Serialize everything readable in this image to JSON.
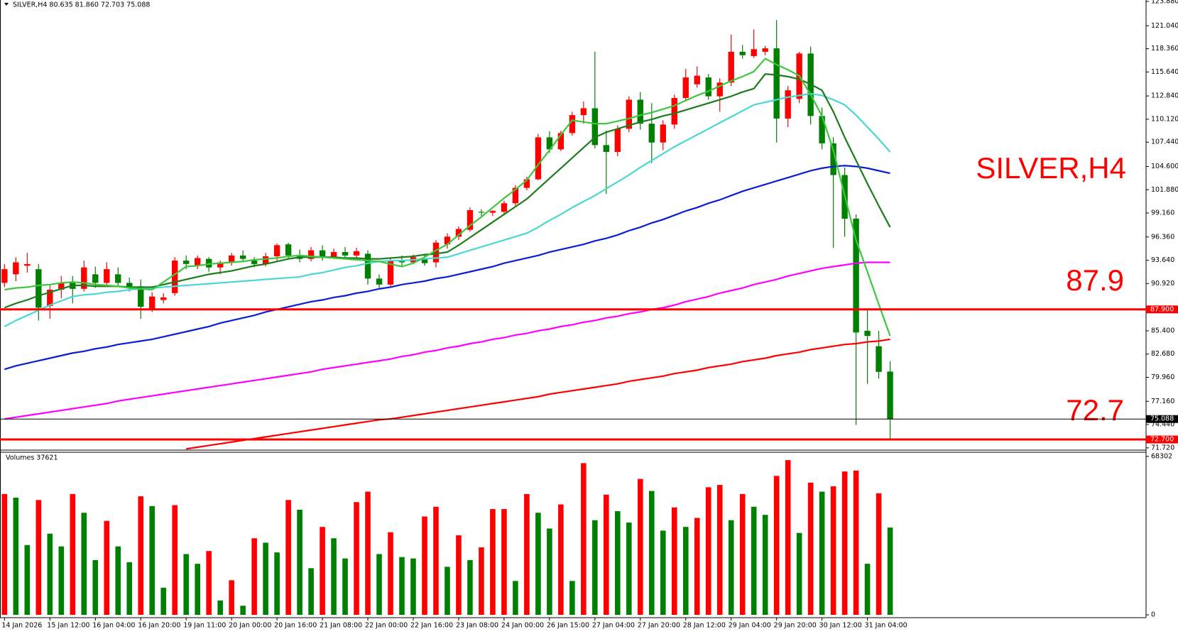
{
  "chart_data": {
    "type": "candlestick",
    "title": "SILVER,H4",
    "header": "SILVER,H4  80.635 81.860 72.703 75.088",
    "annotations": [
      "87.9",
      "72.7"
    ],
    "categories": [
      "14 Jan 2026",
      null,
      null,
      null,
      "15 Jan 12:00",
      null,
      null,
      null,
      "16 Jan 04:00",
      null,
      null,
      null,
      "16 Jan 20:00",
      null,
      null,
      null,
      "19 Jan 11:00",
      null,
      null,
      null,
      "20 Jan 00:00",
      null,
      null,
      null,
      "20 Jan 16:00",
      null,
      null,
      null,
      "21 Jan 08:00",
      null,
      null,
      null,
      "22 Jan 00:00",
      null,
      null,
      null,
      "22 Jan 16:00",
      null,
      null,
      null,
      "23 Jan 08:00",
      null,
      null,
      null,
      "24 Jan 00:00",
      null,
      null,
      null,
      "26 Jan 15:00",
      null,
      null,
      null,
      "27 Jan 04:00",
      null,
      null,
      null,
      "27 Jan 20:00",
      null,
      null,
      null,
      "28 Jan 12:00",
      null,
      null,
      null,
      "29 Jan 04:00",
      null,
      null,
      null,
      "29 Jan 20:00",
      null,
      null,
      null,
      "30 Jan 12:00",
      null,
      null,
      null,
      "31 Jan 04:00",
      null,
      null
    ],
    "ohlc": [
      [
        91.0,
        93.2,
        90.5,
        92.6
      ],
      [
        92.0,
        94.0,
        91.2,
        93.4
      ],
      [
        93.0,
        94.5,
        92.2,
        93.2
      ],
      [
        92.6,
        93.2,
        86.6,
        88.1
      ],
      [
        88.3,
        90.8,
        86.8,
        90.2
      ],
      [
        90.2,
        91.8,
        89.2,
        91.0
      ],
      [
        91.0,
        91.8,
        88.6,
        90.3
      ],
      [
        90.3,
        93.6,
        90.0,
        92.8
      ],
      [
        92.0,
        92.9,
        90.4,
        91.0
      ],
      [
        91.0,
        93.4,
        90.6,
        92.6
      ],
      [
        92.0,
        92.8,
        90.5,
        91.0
      ],
      [
        91.0,
        91.6,
        90.0,
        90.4
      ],
      [
        90.6,
        91.4,
        86.8,
        88.2
      ],
      [
        88.0,
        89.9,
        87.6,
        89.4
      ],
      [
        89.0,
        89.8,
        88.6,
        89.3
      ],
      [
        89.8,
        94.0,
        89.5,
        93.6
      ],
      [
        93.6,
        94.2,
        92.6,
        93.2
      ],
      [
        93.0,
        94.2,
        92.6,
        93.9
      ],
      [
        93.8,
        94.0,
        92.3,
        92.8
      ],
      [
        92.8,
        93.6,
        92.0,
        93.4
      ],
      [
        93.4,
        94.5,
        93.0,
        94.2
      ],
      [
        94.2,
        94.8,
        93.4,
        93.8
      ],
      [
        93.6,
        94.0,
        92.8,
        93.2
      ],
      [
        93.2,
        94.5,
        92.9,
        94.1
      ],
      [
        94.1,
        95.6,
        93.6,
        95.4
      ],
      [
        95.5,
        95.7,
        93.8,
        94.2
      ],
      [
        94.2,
        94.9,
        93.4,
        93.8
      ],
      [
        93.8,
        95.2,
        93.5,
        94.8
      ],
      [
        94.8,
        95.4,
        93.6,
        94.0
      ],
      [
        94.0,
        95.0,
        93.8,
        94.6
      ],
      [
        94.6,
        95.2,
        93.9,
        94.2
      ],
      [
        94.2,
        95.1,
        93.7,
        94.7
      ],
      [
        94.4,
        94.8,
        90.8,
        91.5
      ],
      [
        91.5,
        92.0,
        90.4,
        90.8
      ],
      [
        90.8,
        94.0,
        90.5,
        93.6
      ],
      [
        93.6,
        94.2,
        93.0,
        93.4
      ],
      [
        93.4,
        94.3,
        93.2,
        94.0
      ],
      [
        93.8,
        94.4,
        93.0,
        93.3
      ],
      [
        93.4,
        96.0,
        92.8,
        95.7
      ],
      [
        95.5,
        96.8,
        95.0,
        96.4
      ],
      [
        96.4,
        97.6,
        96.0,
        97.3
      ],
      [
        97.2,
        99.8,
        97.0,
        99.5
      ],
      [
        99.3,
        99.6,
        98.8,
        99.2
      ],
      [
        99.2,
        99.5,
        98.8,
        99.4
      ],
      [
        99.3,
        100.6,
        99.0,
        100.3
      ],
      [
        100.3,
        102.4,
        100.0,
        102.1
      ],
      [
        102.1,
        103.4,
        101.8,
        103.1
      ],
      [
        103.1,
        108.4,
        103.0,
        108.0
      ],
      [
        108.0,
        108.7,
        106.2,
        106.6
      ],
      [
        106.6,
        108.8,
        106.4,
        108.5
      ],
      [
        108.5,
        111.0,
        108.2,
        110.6
      ],
      [
        110.6,
        112.2,
        109.6,
        111.4
      ],
      [
        111.4,
        118.0,
        106.7,
        107.1
      ],
      [
        107.1,
        108.8,
        101.4,
        106.3
      ],
      [
        106.3,
        109.4,
        105.8,
        109.0
      ],
      [
        109.0,
        112.8,
        108.6,
        112.4
      ],
      [
        112.4,
        113.3,
        108.9,
        109.6
      ],
      [
        109.6,
        112.0,
        105.0,
        107.4
      ],
      [
        107.4,
        110.0,
        106.5,
        109.5
      ],
      [
        109.5,
        113.0,
        109.0,
        112.6
      ],
      [
        112.6,
        116.0,
        112.2,
        115.0
      ],
      [
        114.2,
        116.3,
        113.8,
        115.2
      ],
      [
        115.0,
        115.4,
        112.4,
        112.8
      ],
      [
        112.8,
        114.9,
        111.0,
        114.4
      ],
      [
        114.4,
        120.0,
        114.0,
        118.0
      ],
      [
        118.0,
        118.8,
        117.2,
        117.6
      ],
      [
        117.5,
        120.6,
        117.3,
        118.3
      ],
      [
        118.0,
        118.7,
        117.6,
        118.4
      ],
      [
        118.4,
        121.7,
        107.4,
        110.2
      ],
      [
        110.2,
        114.0,
        109.2,
        113.5
      ],
      [
        112.5,
        118.0,
        112.0,
        117.8
      ],
      [
        117.8,
        118.6,
        109.5,
        110.5
      ],
      [
        110.5,
        111.5,
        106.6,
        107.3
      ],
      [
        107.3,
        108.0,
        95.1,
        103.6
      ],
      [
        103.6,
        104.5,
        96.4,
        98.5
      ],
      [
        98.5,
        99.0,
        74.4,
        85.2
      ],
      [
        85.4,
        87.8,
        79.2,
        84.8
      ],
      [
        83.6,
        85.4,
        79.8,
        80.6
      ],
      [
        80.635,
        81.86,
        72.703,
        75.088
      ]
    ],
    "up_color": "#ff0000",
    "down_color": "#008000",
    "ylim": [
      71.54,
      124.05
    ],
    "yticks": [
      {
        "value": 123.88,
        "label": "123.880"
      },
      {
        "value": 121.04,
        "label": "121.040"
      },
      {
        "value": 118.36,
        "label": "118.360"
      },
      {
        "value": 115.64,
        "label": "115.640"
      },
      {
        "value": 112.84,
        "label": "112.840"
      },
      {
        "value": 110.12,
        "label": "110.120"
      },
      {
        "value": 107.44,
        "label": "107.440"
      },
      {
        "value": 104.6,
        "label": "104.600"
      },
      {
        "value": 101.88,
        "label": "101.880"
      },
      {
        "value": 99.16,
        "label": "99.160"
      },
      {
        "value": 96.36,
        "label": "96.360"
      },
      {
        "value": 93.64,
        "label": "93.640"
      },
      {
        "value": 90.92,
        "label": "90.920"
      },
      {
        "value": 85.4,
        "label": "85.400"
      },
      {
        "value": 82.68,
        "label": "82.680"
      },
      {
        "value": 79.96,
        "label": "79.960"
      },
      {
        "value": 77.16,
        "label": "77.160"
      },
      {
        "value": 74.44,
        "label": "74.440"
      },
      {
        "value": 71.72,
        "label": "71.720"
      }
    ],
    "lines": [
      {
        "color": "#ff0000",
        "values": [
          null,
          null,
          null,
          null,
          null,
          null,
          null,
          null,
          null,
          null,
          null,
          null,
          null,
          null,
          null,
          null,
          71.6,
          71.8,
          72.0,
          72.2,
          72.4,
          72.6,
          72.8,
          73.0,
          73.2,
          73.4,
          73.6,
          73.8,
          74.0,
          74.2,
          74.4,
          74.6,
          74.8,
          75.0,
          75.1,
          75.3,
          75.5,
          75.7,
          75.9,
          76.1,
          76.3,
          76.5,
          76.7,
          76.9,
          77.1,
          77.3,
          77.5,
          77.7,
          78.0,
          78.2,
          78.4,
          78.6,
          78.8,
          79.0,
          79.2,
          79.5,
          79.7,
          79.9,
          80.1,
          80.4,
          80.6,
          80.8,
          81.1,
          81.3,
          81.5,
          81.8,
          82.0,
          82.2,
          82.5,
          82.7,
          82.9,
          83.2,
          83.4,
          83.6,
          83.8,
          83.9,
          84.1,
          84.2,
          84.4
        ]
      },
      {
        "color": "#ff00ff",
        "values": [
          75.1,
          75.3,
          75.5,
          75.7,
          75.9,
          76.1,
          76.3,
          76.5,
          76.7,
          76.9,
          77.2,
          77.4,
          77.6,
          77.8,
          78.0,
          78.2,
          78.4,
          78.6,
          78.8,
          79.0,
          79.2,
          79.4,
          79.6,
          79.8,
          80.0,
          80.2,
          80.4,
          80.6,
          80.9,
          81.1,
          81.3,
          81.5,
          81.7,
          81.9,
          82.1,
          82.4,
          82.6,
          82.9,
          83.1,
          83.4,
          83.6,
          83.9,
          84.1,
          84.4,
          84.6,
          84.9,
          85.1,
          85.4,
          85.6,
          85.9,
          86.1,
          86.4,
          86.6,
          86.9,
          87.1,
          87.4,
          87.6,
          87.9,
          88.1,
          88.4,
          88.8,
          89.1,
          89.4,
          89.8,
          90.1,
          90.4,
          90.8,
          91.1,
          91.4,
          91.8,
          92.1,
          92.4,
          92.7,
          92.9,
          93.1,
          93.3,
          93.4,
          93.4,
          93.4
        ]
      },
      {
        "color": "#0a1ed2",
        "values": [
          80.9,
          81.3,
          81.6,
          81.9,
          82.2,
          82.5,
          82.8,
          83.0,
          83.3,
          83.5,
          83.8,
          84.0,
          84.2,
          84.4,
          84.7,
          85.0,
          85.3,
          85.6,
          85.9,
          86.3,
          86.6,
          86.9,
          87.2,
          87.6,
          87.9,
          88.2,
          88.5,
          88.8,
          89.0,
          89.3,
          89.5,
          89.8,
          90.0,
          90.3,
          90.5,
          90.8,
          91.0,
          91.2,
          91.5,
          91.7,
          92.0,
          92.3,
          92.6,
          92.9,
          93.3,
          93.6,
          93.9,
          94.2,
          94.6,
          94.9,
          95.2,
          95.5,
          95.9,
          96.2,
          96.6,
          97.1,
          97.5,
          98.0,
          98.4,
          98.9,
          99.4,
          99.8,
          100.3,
          100.7,
          101.2,
          101.7,
          102.1,
          102.5,
          102.9,
          103.3,
          103.7,
          104.1,
          104.4,
          104.6,
          104.7,
          104.6,
          104.4,
          104.1,
          103.8
        ]
      },
      {
        "color": "#48d8d0",
        "values": [
          85.9,
          86.6,
          87.2,
          87.8,
          88.4,
          88.9,
          89.4,
          89.6,
          89.7,
          89.9,
          90.0,
          90.2,
          90.3,
          90.4,
          90.5,
          90.6,
          90.7,
          90.8,
          90.9,
          91.0,
          91.1,
          91.2,
          91.3,
          91.4,
          91.5,
          91.6,
          91.7,
          92.0,
          92.2,
          92.5,
          92.8,
          93.0,
          93.3,
          93.5,
          93.6,
          93.6,
          93.7,
          93.8,
          93.9,
          94.0,
          94.4,
          94.8,
          95.2,
          95.6,
          96.0,
          96.4,
          96.8,
          97.5,
          98.3,
          99.0,
          99.8,
          100.5,
          101.2,
          102.0,
          102.8,
          103.6,
          104.5,
          105.3,
          106.1,
          106.9,
          107.6,
          108.3,
          109.0,
          109.7,
          110.4,
          111.1,
          111.8,
          112.1,
          112.4,
          112.7,
          112.9,
          113.1,
          112.9,
          112.4,
          111.8,
          110.6,
          109.2,
          107.8,
          106.3
        ]
      },
      {
        "color": "#1a7d1a",
        "values": [
          88.1,
          88.6,
          89.0,
          89.5,
          89.9,
          90.3,
          90.7,
          90.7,
          90.6,
          90.6,
          90.6,
          90.5,
          90.5,
          90.5,
          90.8,
          91.1,
          91.4,
          91.7,
          92.0,
          92.2,
          92.4,
          92.7,
          93.0,
          93.2,
          93.5,
          93.8,
          94.0,
          94.0,
          94.0,
          94.0,
          93.9,
          93.9,
          93.8,
          93.8,
          93.9,
          94.0,
          94.1,
          94.3,
          94.4,
          94.6,
          95.4,
          96.3,
          97.2,
          98.1,
          99.0,
          99.9,
          100.8,
          102.0,
          103.2,
          104.4,
          105.6,
          106.8,
          108.0,
          108.6,
          109.0,
          109.4,
          109.8,
          110.1,
          110.5,
          110.8,
          111.2,
          111.6,
          112.0,
          112.4,
          112.8,
          113.3,
          113.7,
          115.4,
          115.3,
          115.1,
          114.8,
          114.2,
          113.5,
          111.0,
          108.0,
          105.3,
          102.6,
          100.0,
          97.5
        ]
      },
      {
        "color": "#3cc83c",
        "values": [
          90.2,
          90.4,
          90.5,
          90.7,
          90.8,
          91.0,
          91.1,
          91.0,
          90.8,
          90.7,
          90.6,
          90.4,
          90.3,
          90.2,
          91.1,
          92.0,
          92.9,
          93.0,
          93.2,
          93.3,
          93.4,
          93.5,
          93.7,
          93.8,
          93.9,
          94.1,
          94.2,
          94.1,
          94.0,
          93.9,
          93.8,
          93.7,
          93.6,
          93.5,
          93.2,
          92.9,
          93.3,
          94.0,
          94.8,
          95.5,
          96.6,
          97.7,
          98.7,
          99.8,
          100.9,
          101.9,
          103.0,
          104.8,
          106.5,
          108.3,
          110.0,
          109.8,
          109.6,
          109.6,
          109.9,
          110.2,
          110.6,
          110.9,
          111.3,
          111.7,
          112.3,
          112.9,
          113.4,
          114.0,
          114.6,
          115.1,
          115.7,
          117.2,
          116.5,
          115.9,
          115.2,
          113.0,
          110.5,
          106.5,
          101.2,
          96.0,
          92.3,
          88.5,
          84.8
        ]
      }
    ],
    "hlines": [
      {
        "value": 87.9,
        "label": "87.900",
        "color": "#ff0000",
        "width": 3
      },
      {
        "value": 72.7,
        "label": "72.700",
        "color": "#ff0000",
        "width": 3
      },
      {
        "value": 75.088,
        "label": "75.088",
        "color": "#000000",
        "width": 1
      }
    ],
    "volume": {
      "type": "bar",
      "title": "Volumes 37621",
      "values": [
        52100,
        50500,
        30100,
        49500,
        35000,
        29500,
        52100,
        44000,
        23600,
        40500,
        29500,
        22700,
        51100,
        46900,
        11700,
        47300,
        26200,
        22000,
        27500,
        6200,
        14900,
        3900,
        33000,
        31100,
        26900,
        49500,
        45300,
        20100,
        37900,
        33000,
        24300,
        48600,
        53100,
        26200,
        35600,
        24900,
        24300,
        42400,
        46600,
        20700,
        34300,
        23600,
        29100,
        45600,
        45600,
        14600,
        52100,
        44000,
        37200,
        47600,
        14600,
        65400,
        40800,
        51800,
        44700,
        39800,
        58600,
        53400,
        36300,
        46300,
        37900,
        41800,
        55000,
        56000,
        40800,
        52100,
        46600,
        43100,
        59900,
        66700,
        35300,
        57000,
        53100,
        55400,
        61800,
        62200,
        22000,
        52400,
        37621
      ],
      "up_color": "#ff0000",
      "down_color": "#008000",
      "ylim": [
        0,
        70400
      ],
      "yticks": [
        0,
        68302
      ]
    }
  }
}
